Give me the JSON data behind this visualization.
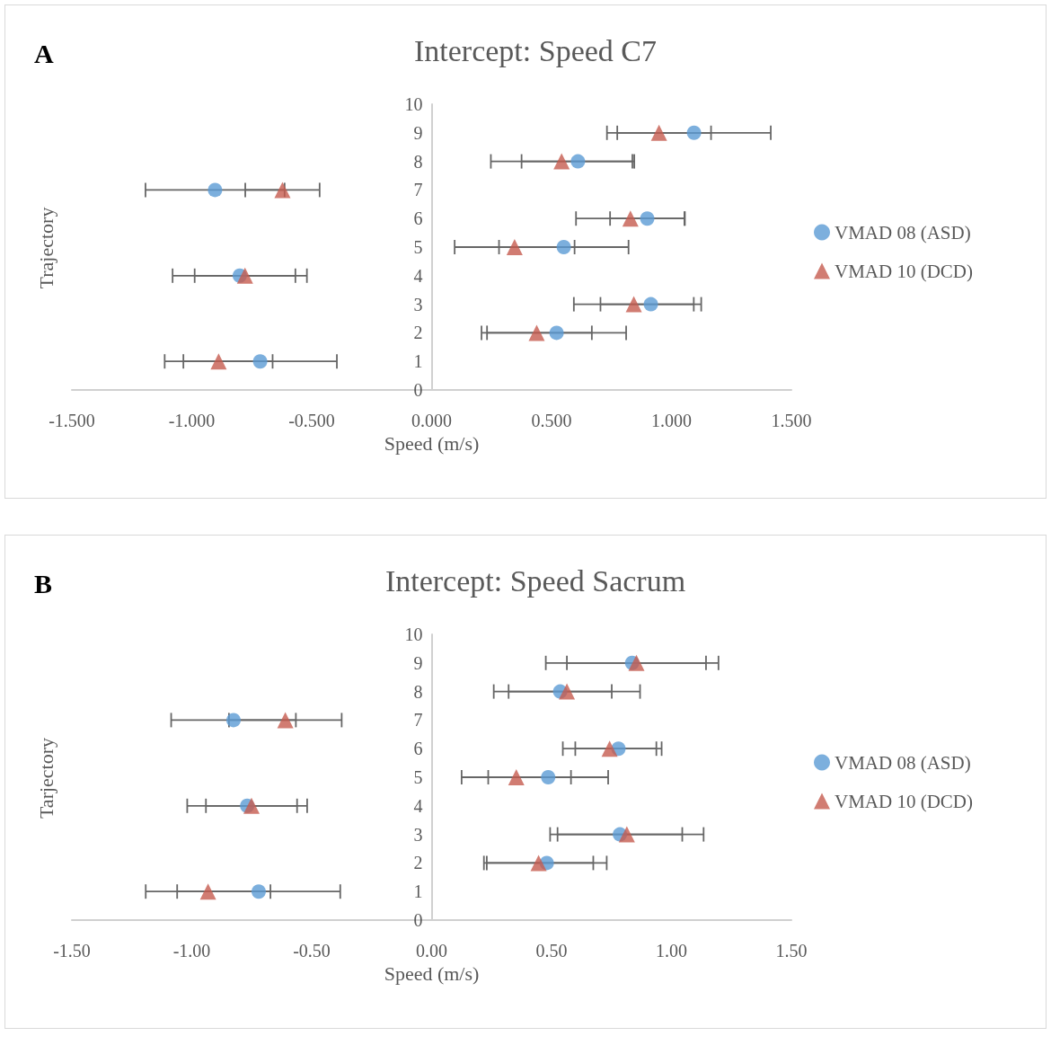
{
  "chart_data": [
    {
      "type": "scatter",
      "title": "Intercept: Speed C7",
      "xlabel": "Speed (m/s)",
      "ylabel": "Trajectory",
      "annotations": [
        "A"
      ],
      "xlim": [
        -1.5,
        1.5
      ],
      "xticks": [
        {
          "value": -1.5,
          "label": "-1.500"
        },
        {
          "value": -1,
          "label": "-1.000"
        },
        {
          "value": -0.5,
          "label": "-0.500"
        },
        {
          "value": 0,
          "label": "0.000"
        },
        {
          "value": 0.5,
          "label": "0.500"
        },
        {
          "value": 1,
          "label": "1.000"
        },
        {
          "value": 1.5,
          "label": "1.500"
        }
      ],
      "ylim": [
        0,
        10
      ],
      "yticks": [
        0,
        1,
        2,
        3,
        4,
        5,
        6,
        7,
        8,
        9,
        10
      ],
      "grid": false,
      "legend": "right",
      "series": [
        {
          "name": "VMAD 08 (ASD)",
          "color": "#5b9bd5",
          "marker": "circle",
          "x": [
            -0.715,
            0.521,
            0.914,
            -0.8,
            0.551,
            0.899,
            -0.903,
            0.61,
            1.094
          ],
          "values": [
            1,
            2,
            3,
            4,
            5,
            6,
            7,
            8,
            9
          ],
          "xerrors": [
            0.32,
            0.29,
            0.21,
            0.28,
            0.27,
            0.155,
            0.29,
            0.235,
            0.32
          ]
        },
        {
          "name": "VMAD 10 (DCD)",
          "color": "#c65b4f",
          "marker": "triangle",
          "x": [
            -0.888,
            0.438,
            0.843,
            -0.778,
            0.346,
            0.829,
            -0.622,
            0.542,
            0.948
          ],
          "values": [
            1,
            2,
            3,
            4,
            5,
            6,
            7,
            8,
            9
          ],
          "xerrors": [
            0.225,
            0.23,
            0.25,
            0.21,
            0.25,
            0.227,
            0.155,
            0.295,
            0.217
          ]
        }
      ]
    },
    {
      "type": "scatter",
      "title": "Intercept: Speed Sacrum",
      "xlabel": "Speed (m/s)",
      "ylabel": "Tarjectory",
      "annotations": [
        "B"
      ],
      "xlim": [
        -1.5,
        1.5
      ],
      "xticks": [
        {
          "value": -1.5,
          "label": "-1.50"
        },
        {
          "value": -1,
          "label": "-1.00"
        },
        {
          "value": -0.5,
          "label": "-0.50"
        },
        {
          "value": 0,
          "label": "0.00"
        },
        {
          "value": 0.5,
          "label": "0.50"
        },
        {
          "value": 1,
          "label": "1.00"
        },
        {
          "value": 1.5,
          "label": "1.50"
        }
      ],
      "ylim": [
        0,
        10
      ],
      "yticks": [
        0,
        1,
        2,
        3,
        4,
        5,
        6,
        7,
        8,
        9,
        10
      ],
      "grid": false,
      "legend": "right",
      "series": [
        {
          "name": "VMAD 08 (ASD)",
          "color": "#5b9bd5",
          "marker": "circle",
          "x": [
            -0.721,
            0.48,
            0.785,
            -0.769,
            0.486,
            0.779,
            -0.826,
            0.536,
            0.836
          ],
          "values": [
            1,
            2,
            3,
            4,
            5,
            6,
            7,
            8,
            9
          ],
          "xerrors": [
            0.34,
            0.25,
            0.26,
            0.25,
            0.25,
            0.18,
            0.26,
            0.215,
            0.36
          ]
        },
        {
          "name": "VMAD 10 (DCD)",
          "color": "#c65b4f",
          "marker": "triangle",
          "x": [
            -0.932,
            0.446,
            0.814,
            -0.751,
            0.353,
            0.742,
            -0.61,
            0.564,
            0.854
          ],
          "values": [
            1,
            2,
            3,
            4,
            5,
            6,
            7,
            8,
            9
          ],
          "xerrors": [
            0.26,
            0.228,
            0.32,
            0.19,
            0.228,
            0.195,
            0.235,
            0.305,
            0.29
          ]
        }
      ]
    }
  ]
}
